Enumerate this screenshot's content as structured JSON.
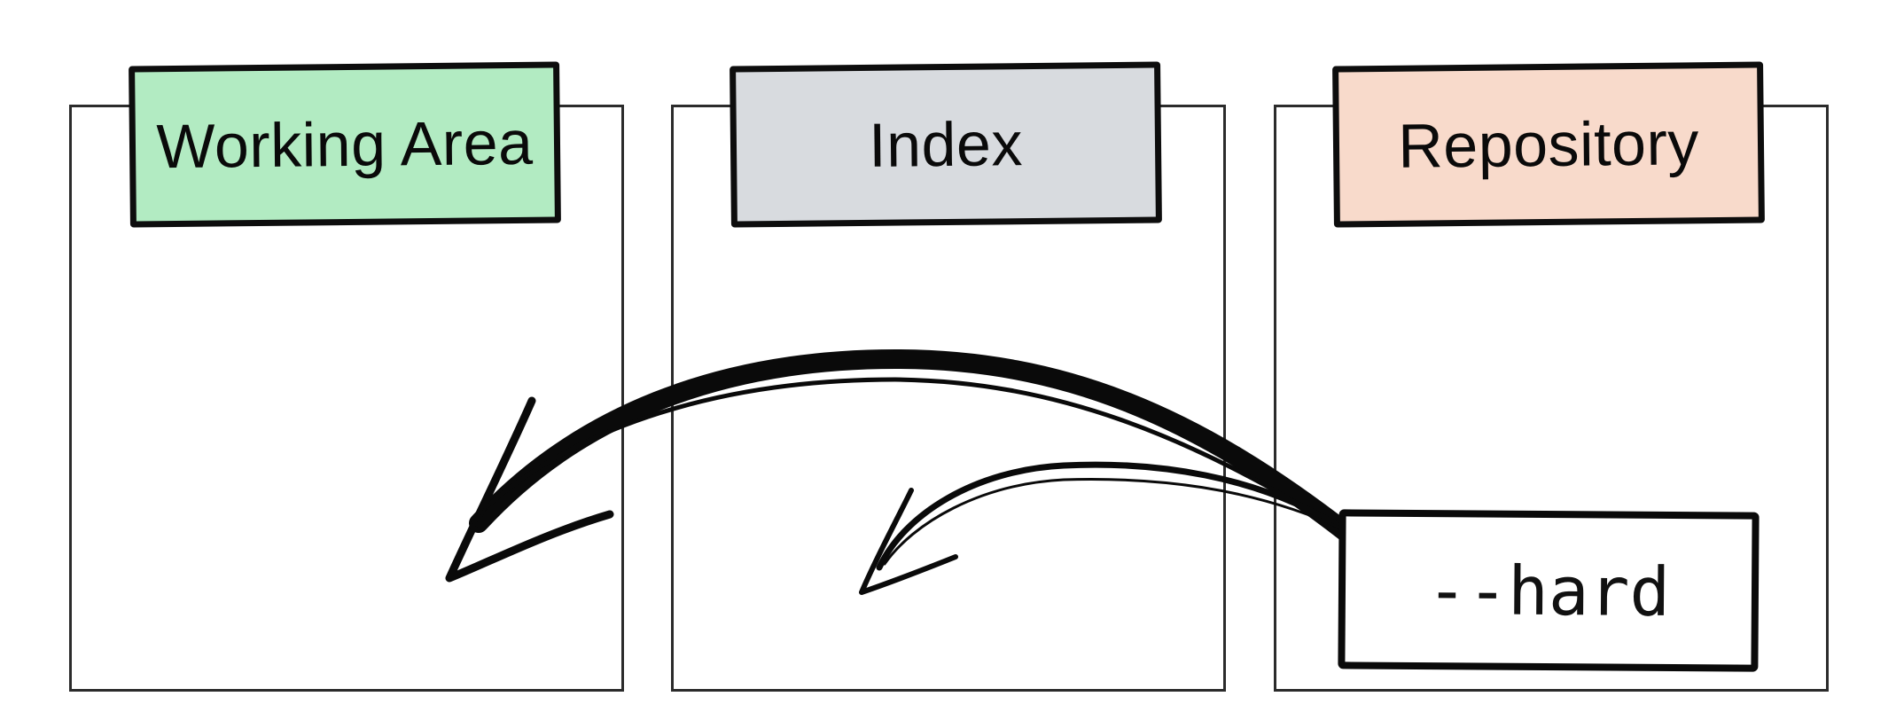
{
  "areas": {
    "working": {
      "label": "Working Area",
      "color": "#b2ebc2"
    },
    "index": {
      "label": "Index",
      "color": "#d8dbdf"
    },
    "repository": {
      "label": "Repository",
      "color": "#f8dacb"
    }
  },
  "option": {
    "label": "--hard"
  },
  "arrows": [
    {
      "from": "--hard",
      "to": "Working Area"
    },
    {
      "from": "--hard",
      "to": "Index"
    }
  ]
}
